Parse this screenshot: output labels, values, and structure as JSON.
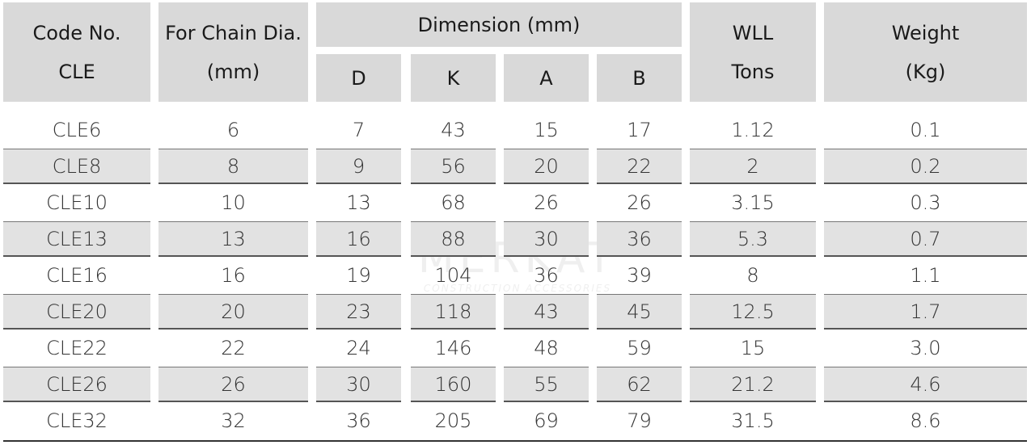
{
  "header": {
    "code": [
      "Code No.",
      "CLE"
    ],
    "chain": [
      "For Chain Dia.",
      "(mm)"
    ],
    "dimension": "Dimension (mm)",
    "dims": [
      "D",
      "K",
      "A",
      "B"
    ],
    "wll": [
      "WLL",
      "Tons"
    ],
    "weight": [
      "Weight",
      "(Kg)"
    ]
  },
  "rows": [
    [
      "CLE6",
      "6",
      "7",
      "43",
      "15",
      "17",
      "1.12",
      "0.1"
    ],
    [
      "CLE8",
      "8",
      "9",
      "56",
      "20",
      "22",
      "2",
      "0.2"
    ],
    [
      "CLE10",
      "10",
      "13",
      "68",
      "26",
      "26",
      "3.15",
      "0.3"
    ],
    [
      "CLE13",
      "13",
      "16",
      "88",
      "30",
      "36",
      "5.3",
      "0.7"
    ],
    [
      "CLE16",
      "16",
      "19",
      "104",
      "36",
      "39",
      "8",
      "1.1"
    ],
    [
      "CLE20",
      "20",
      "23",
      "118",
      "43",
      "45",
      "12.5",
      "1.7"
    ],
    [
      "CLE22",
      "22",
      "24",
      "146",
      "48",
      "59",
      "15",
      "3.0"
    ],
    [
      "CLE26",
      "26",
      "30",
      "160",
      "55",
      "62",
      "21.2",
      "4.6"
    ],
    [
      "CLE32",
      "32",
      "36",
      "205",
      "69",
      "79",
      "31.5",
      "8.6"
    ]
  ],
  "watermark": {
    "name": "MERKAT",
    "tagline": "CONSTRUCTION ACCESSORIES"
  }
}
